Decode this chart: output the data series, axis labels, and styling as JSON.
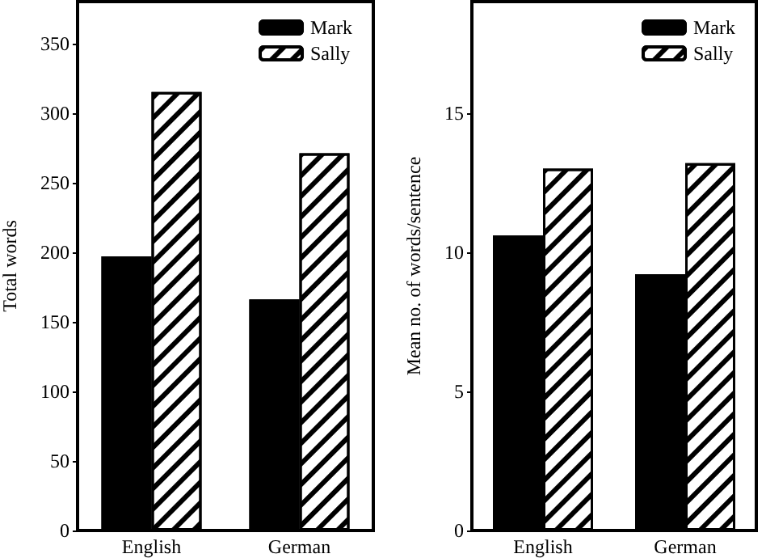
{
  "chart_data": [
    {
      "type": "bar",
      "ylabel": "Total words",
      "categories": [
        "English",
        "German"
      ],
      "series": [
        {
          "name": "Mark",
          "color": "#000000",
          "values": [
            197,
            166
          ]
        },
        {
          "name": "Sally",
          "color": "#ffffff",
          "values": [
            315,
            271
          ]
        }
      ],
      "ylim": [
        0,
        380
      ],
      "yticks": [
        0,
        50,
        100,
        150,
        200,
        250,
        300,
        350
      ],
      "grid": false,
      "legend": "top right"
    },
    {
      "type": "bar",
      "ylabel": "Mean no. of words/sentence",
      "categories": [
        "English",
        "German"
      ],
      "series": [
        {
          "name": "Mark",
          "color": "#000000",
          "values": [
            10.6,
            9.2
          ]
        },
        {
          "name": "Sally",
          "color": "#ffffff",
          "values": [
            13.0,
            13.2
          ]
        }
      ],
      "ylim": [
        0,
        19
      ],
      "yticks": [
        0,
        5,
        10,
        15
      ],
      "grid": false,
      "legend": "top right"
    }
  ]
}
